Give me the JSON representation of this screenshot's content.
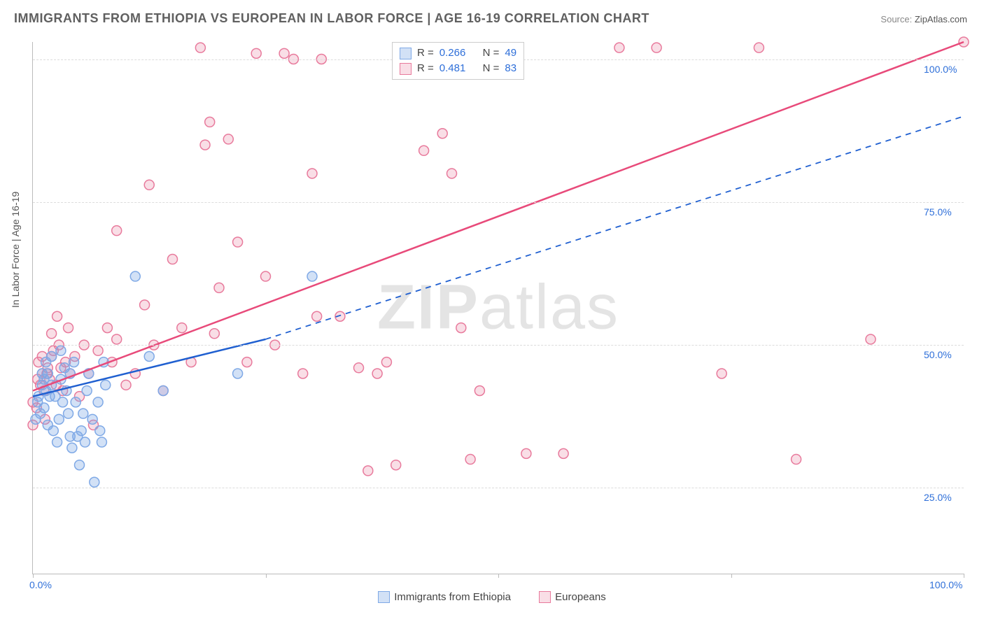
{
  "title": "IMMIGRANTS FROM ETHIOPIA VS EUROPEAN IN LABOR FORCE | AGE 16-19 CORRELATION CHART",
  "source_label": "Source:",
  "source_value": "ZipAtlas.com",
  "ylabel": "In Labor Force | Age 16-19",
  "watermark_bold": "ZIP",
  "watermark_rest": "atlas",
  "chart": {
    "type": "scatter",
    "xlim": [
      0,
      100
    ],
    "ylim": [
      10,
      103
    ],
    "x_ticks": [
      0,
      25,
      50,
      75,
      100
    ],
    "y_ticks": [
      25,
      50,
      75,
      100
    ],
    "x_tick_labels": [
      "0.0%",
      "",
      "",
      "",
      "100.0%"
    ],
    "y_tick_labels": [
      "25.0%",
      "50.0%",
      "75.0%",
      "100.0%"
    ],
    "grid_color": "#dcdcdc",
    "background_color": "#ffffff",
    "series": [
      {
        "name": "Immigrants from Ethiopia",
        "marker_color": "#7fa9e6",
        "marker_fill": "rgba(127,169,230,0.35)",
        "marker_size": 7,
        "line_color": "#1f5fd0",
        "line_width": 2.5,
        "R": 0.266,
        "N": 49,
        "trend_solid": {
          "x1": 0,
          "y1": 41,
          "x2": 25,
          "y2": 51
        },
        "trend_dash": {
          "x1": 25,
          "y1": 51,
          "x2": 100,
          "y2": 90
        },
        "points": [
          [
            0.3,
            37
          ],
          [
            0.5,
            40
          ],
          [
            0.6,
            41
          ],
          [
            0.8,
            38
          ],
          [
            1.0,
            43
          ],
          [
            1.0,
            45
          ],
          [
            1.2,
            39
          ],
          [
            1.2,
            44
          ],
          [
            1.4,
            42
          ],
          [
            1.4,
            47
          ],
          [
            1.6,
            36
          ],
          [
            1.6,
            45
          ],
          [
            1.8,
            41
          ],
          [
            2.0,
            43
          ],
          [
            2.0,
            48
          ],
          [
            2.2,
            35
          ],
          [
            2.4,
            41
          ],
          [
            2.6,
            33
          ],
          [
            2.8,
            37
          ],
          [
            3.0,
            44
          ],
          [
            3.0,
            49
          ],
          [
            3.2,
            40
          ],
          [
            3.4,
            46
          ],
          [
            3.6,
            42
          ],
          [
            3.8,
            38
          ],
          [
            4.0,
            34
          ],
          [
            4.0,
            45
          ],
          [
            4.2,
            32
          ],
          [
            4.4,
            47
          ],
          [
            4.6,
            40
          ],
          [
            4.8,
            34
          ],
          [
            5.0,
            29
          ],
          [
            5.2,
            35
          ],
          [
            5.4,
            38
          ],
          [
            5.6,
            33
          ],
          [
            5.8,
            42
          ],
          [
            6.0,
            45
          ],
          [
            6.4,
            37
          ],
          [
            6.6,
            26
          ],
          [
            7.0,
            40
          ],
          [
            7.2,
            35
          ],
          [
            7.4,
            33
          ],
          [
            7.6,
            47
          ],
          [
            7.8,
            43
          ],
          [
            11.0,
            62
          ],
          [
            12.5,
            48
          ],
          [
            14.0,
            42
          ],
          [
            22.0,
            45
          ],
          [
            30.0,
            62
          ]
        ]
      },
      {
        "name": "Europeans",
        "marker_color": "#e87a9c",
        "marker_fill": "rgba(232,122,156,0.25)",
        "marker_size": 7,
        "line_color": "#e84a7a",
        "line_width": 2.5,
        "R": 0.481,
        "N": 83,
        "trend_solid": {
          "x1": 0,
          "y1": 42,
          "x2": 100,
          "y2": 103
        },
        "points": [
          [
            0.0,
            36
          ],
          [
            0.0,
            40
          ],
          [
            0.4,
            39
          ],
          [
            0.5,
            44
          ],
          [
            0.6,
            47
          ],
          [
            0.8,
            43
          ],
          [
            1.0,
            45
          ],
          [
            1.0,
            48
          ],
          [
            1.2,
            42
          ],
          [
            1.3,
            37
          ],
          [
            1.5,
            45
          ],
          [
            1.6,
            46
          ],
          [
            1.8,
            44
          ],
          [
            2.0,
            48
          ],
          [
            2.0,
            52
          ],
          [
            2.2,
            49
          ],
          [
            2.5,
            43
          ],
          [
            2.6,
            55
          ],
          [
            2.8,
            50
          ],
          [
            3.0,
            46
          ],
          [
            3.2,
            42
          ],
          [
            3.5,
            47
          ],
          [
            3.8,
            53
          ],
          [
            4.0,
            45
          ],
          [
            4.5,
            48
          ],
          [
            5.0,
            41
          ],
          [
            5.5,
            50
          ],
          [
            6.0,
            45
          ],
          [
            6.5,
            36
          ],
          [
            7.0,
            49
          ],
          [
            8.0,
            53
          ],
          [
            8.5,
            47
          ],
          [
            9.0,
            70
          ],
          [
            9.0,
            51
          ],
          [
            10.0,
            43
          ],
          [
            11.0,
            45
          ],
          [
            12.0,
            57
          ],
          [
            12.5,
            78
          ],
          [
            13.0,
            50
          ],
          [
            14.0,
            42
          ],
          [
            15.0,
            65
          ],
          [
            16.0,
            53
          ],
          [
            17.0,
            47
          ],
          [
            18.0,
            102
          ],
          [
            18.5,
            85
          ],
          [
            19.0,
            89
          ],
          [
            19.5,
            52
          ],
          [
            20.0,
            60
          ],
          [
            21.0,
            86
          ],
          [
            22.0,
            68
          ],
          [
            23.0,
            47
          ],
          [
            24.0,
            101
          ],
          [
            25.0,
            62
          ],
          [
            26.0,
            50
          ],
          [
            27.0,
            101
          ],
          [
            28.0,
            100
          ],
          [
            29.0,
            45
          ],
          [
            30.0,
            80
          ],
          [
            30.5,
            55
          ],
          [
            31.0,
            100
          ],
          [
            33.0,
            55
          ],
          [
            35.0,
            46
          ],
          [
            36.0,
            28
          ],
          [
            37.0,
            45
          ],
          [
            38.0,
            47
          ],
          [
            39.0,
            29
          ],
          [
            40.0,
            101
          ],
          [
            42.0,
            84
          ],
          [
            44.0,
            87
          ],
          [
            45.0,
            80
          ],
          [
            46.0,
            53
          ],
          [
            47.0,
            30
          ],
          [
            48.0,
            42
          ],
          [
            50.0,
            101
          ],
          [
            53.0,
            31
          ],
          [
            57.0,
            31
          ],
          [
            63.0,
            102
          ],
          [
            67.0,
            102
          ],
          [
            74.0,
            45
          ],
          [
            78.0,
            102
          ],
          [
            82.0,
            30
          ],
          [
            90.0,
            51
          ],
          [
            100.0,
            103
          ]
        ]
      }
    ]
  },
  "legend": {
    "series1": "Immigrants from Ethiopia",
    "series2": "Europeans"
  },
  "stats_labels": {
    "R": "R =",
    "N": "N ="
  }
}
